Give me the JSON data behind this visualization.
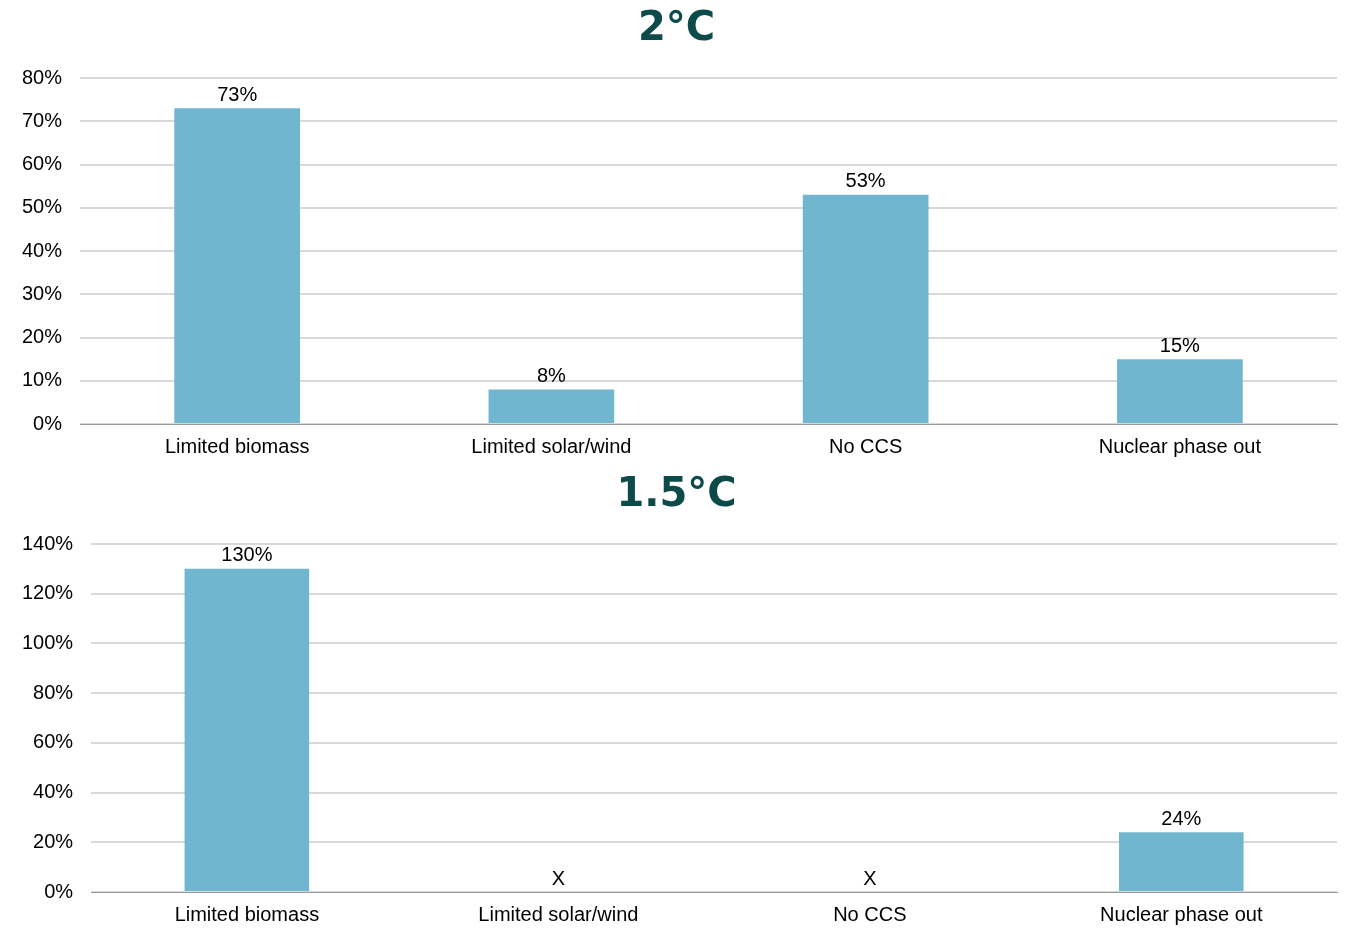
{
  "chart_data": [
    {
      "type": "bar",
      "title": "2°C",
      "categories": [
        "Limited biomass",
        "Limited solar/wind",
        "No CCS",
        "Nuclear phase out"
      ],
      "values": [
        73,
        8,
        53,
        15
      ],
      "color": "#70b6cf",
      "value_labels": [
        "73%",
        "8%",
        "53%",
        "15%"
      ],
      "ylim": [
        0,
        80
      ],
      "yticks": [
        {
          "value": 0,
          "label": "0%"
        },
        {
          "value": 10,
          "label": "10%"
        },
        {
          "value": 20,
          "label": "20%"
        },
        {
          "value": 30,
          "label": "30%"
        },
        {
          "value": 40,
          "label": "40%"
        },
        {
          "value": 50,
          "label": "50%"
        },
        {
          "value": 60,
          "label": "60%"
        },
        {
          "value": 70,
          "label": "70%"
        },
        {
          "value": 80,
          "label": "80%"
        }
      ],
      "grid": "y",
      "legend": false
    },
    {
      "type": "bar",
      "title": "1.5°C",
      "categories": [
        "Limited biomass",
        "Limited solar/wind",
        "No CCS",
        "Nuclear phase out"
      ],
      "values": [
        130,
        null,
        null,
        24
      ],
      "color": "#70b6cf",
      "value_labels": [
        "130%",
        "X",
        "X",
        "24%"
      ],
      "ylim": [
        0,
        140
      ],
      "yticks": [
        {
          "value": 0,
          "label": "0%"
        },
        {
          "value": 20,
          "label": "20%"
        },
        {
          "value": 40,
          "label": "40%"
        },
        {
          "value": 60,
          "label": "60%"
        },
        {
          "value": 80,
          "label": "80%"
        },
        {
          "value": 100,
          "label": "100%"
        },
        {
          "value": 120,
          "label": "120%"
        },
        {
          "value": 140,
          "label": "140%"
        }
      ],
      "grid": "y",
      "legend": false
    }
  ]
}
